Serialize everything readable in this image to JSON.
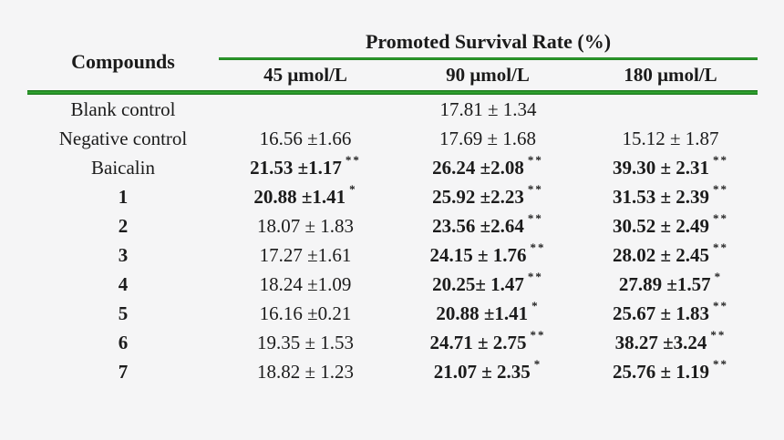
{
  "colors": {
    "background": "#f5f5f6",
    "text": "#1b1b1b",
    "rule_green_dark": "#177117",
    "rule_green_bright": "#31a331"
  },
  "table": {
    "compounds_header": "Compounds",
    "group_header": "Promoted Survival Rate (%)",
    "column_headers": [
      "45 μmol/L",
      "90 μmol/L",
      "180 μmol/L"
    ],
    "rows": [
      {
        "compound": "Blank control",
        "compound_bold": false,
        "span_value": "17.81 ± 1.34"
      },
      {
        "compound": "Negative control",
        "compound_bold": false,
        "cells": [
          {
            "text": "16.56 ±1.66",
            "bold": false,
            "sig": ""
          },
          {
            "text": "17.69 ± 1.68",
            "bold": false,
            "sig": ""
          },
          {
            "text": "15.12 ± 1.87",
            "bold": false,
            "sig": ""
          }
        ]
      },
      {
        "compound": "Baicalin",
        "compound_bold": false,
        "cells": [
          {
            "text": "21.53 ±1.17",
            "bold": true,
            "sig": "**"
          },
          {
            "text": "26.24 ±2.08",
            "bold": true,
            "sig": "**"
          },
          {
            "text": "39.30 ± 2.31",
            "bold": true,
            "sig": "**"
          }
        ]
      },
      {
        "compound": "1",
        "compound_bold": true,
        "cells": [
          {
            "text": "20.88 ±1.41",
            "bold": true,
            "sig": "*"
          },
          {
            "text": "25.92 ±2.23",
            "bold": true,
            "sig": "**"
          },
          {
            "text": "31.53 ± 2.39",
            "bold": true,
            "sig": "**"
          }
        ]
      },
      {
        "compound": "2",
        "compound_bold": true,
        "cells": [
          {
            "text": "18.07 ± 1.83",
            "bold": false,
            "sig": ""
          },
          {
            "text": "23.56 ±2.64",
            "bold": true,
            "sig": "**"
          },
          {
            "text": "30.52 ± 2.49",
            "bold": true,
            "sig": "**"
          }
        ]
      },
      {
        "compound": "3",
        "compound_bold": true,
        "cells": [
          {
            "text": "17.27 ±1.61",
            "bold": false,
            "sig": ""
          },
          {
            "text": "24.15 ± 1.76",
            "bold": true,
            "sig": "**"
          },
          {
            "text": "28.02 ± 2.45",
            "bold": true,
            "sig": "**"
          }
        ]
      },
      {
        "compound": "4",
        "compound_bold": true,
        "cells": [
          {
            "text": "18.24 ±1.09",
            "bold": false,
            "sig": ""
          },
          {
            "text": "20.25± 1.47",
            "bold": true,
            "sig": "**"
          },
          {
            "text": "27.89 ±1.57",
            "bold": true,
            "sig": "*"
          }
        ]
      },
      {
        "compound": "5",
        "compound_bold": true,
        "cells": [
          {
            "text": "16.16 ±0.21",
            "bold": false,
            "sig": ""
          },
          {
            "text": "20.88 ±1.41",
            "bold": true,
            "sig": "*"
          },
          {
            "text": "25.67 ± 1.83",
            "bold": true,
            "sig": "**"
          }
        ]
      },
      {
        "compound": "6",
        "compound_bold": true,
        "cells": [
          {
            "text": "19.35 ± 1.53",
            "bold": false,
            "sig": ""
          },
          {
            "text": "24.71 ± 2.75",
            "bold": true,
            "sig": "**"
          },
          {
            "text": "38.27 ±3.24",
            "bold": true,
            "sig": "**"
          }
        ]
      },
      {
        "compound": "7",
        "compound_bold": true,
        "cells": [
          {
            "text": "18.82 ± 1.23",
            "bold": false,
            "sig": ""
          },
          {
            "text": "21.07 ± 2.35",
            "bold": true,
            "sig": "*"
          },
          {
            "text": "25.76 ± 1.19",
            "bold": true,
            "sig": "**"
          }
        ]
      }
    ]
  }
}
